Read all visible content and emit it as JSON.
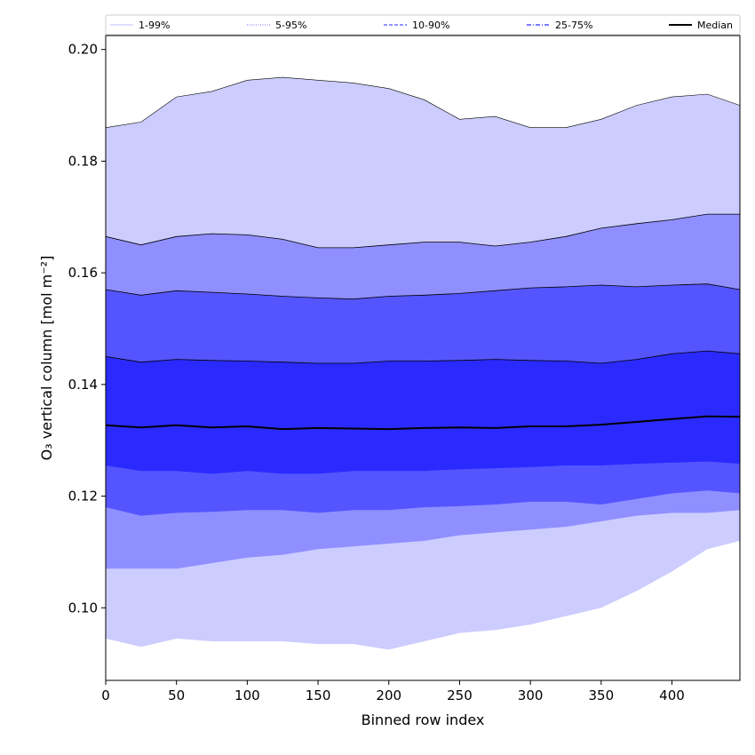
{
  "chart_data": {
    "type": "area",
    "xlabel": "Binned row index",
    "ylabel": "O₃ vertical column [mol m⁻²]",
    "xlim": [
      0,
      448
    ],
    "ylim": [
      0.087,
      0.2025
    ],
    "xticks": [
      0,
      50,
      100,
      150,
      200,
      250,
      300,
      350,
      400
    ],
    "yticks": [
      0.1,
      0.12,
      0.14,
      0.16,
      0.18,
      0.2
    ],
    "ytick_labels": [
      "0.10",
      "0.12",
      "0.14",
      "0.16",
      "0.18",
      "0.20"
    ],
    "grid": false,
    "legend_position": "top",
    "legend": [
      {
        "label": "1-99%",
        "color": "#ccccff",
        "style": "solid"
      },
      {
        "label": "5-95%",
        "color": "#8f8fff",
        "style": "dotted"
      },
      {
        "label": "10-90%",
        "color": "#5555ff",
        "style": "dashed"
      },
      {
        "label": "25-75%",
        "color": "#2a2aff",
        "style": "dashdot"
      },
      {
        "label": "Median",
        "color": "#000000",
        "style": "solid"
      }
    ],
    "x": [
      0,
      25,
      50,
      75,
      100,
      125,
      150,
      175,
      200,
      225,
      250,
      275,
      300,
      325,
      350,
      375,
      400,
      425,
      448
    ],
    "series": [
      {
        "name": "1-99%",
        "color": "#ccccff",
        "lower": [
          0.0945,
          0.093,
          0.0945,
          0.094,
          0.094,
          0.094,
          0.0935,
          0.0935,
          0.0925,
          0.094,
          0.0955,
          0.096,
          0.097,
          0.0985,
          0.1,
          0.103,
          0.1065,
          0.1105,
          0.112
        ],
        "upper": [
          0.186,
          0.187,
          0.1915,
          0.1925,
          0.1945,
          0.195,
          0.1945,
          0.194,
          0.193,
          0.191,
          0.1875,
          0.188,
          0.186,
          0.186,
          0.1875,
          0.19,
          0.1915,
          0.192,
          0.19
        ]
      },
      {
        "name": "5-95%",
        "color": "#8f8fff",
        "lower": [
          0.107,
          0.107,
          0.107,
          0.108,
          0.109,
          0.1095,
          0.1105,
          0.111,
          0.1115,
          0.112,
          0.113,
          0.1135,
          0.114,
          0.1145,
          0.1155,
          0.1165,
          0.117,
          0.117,
          0.1175
        ],
        "upper": [
          0.1665,
          0.165,
          0.1665,
          0.167,
          0.1668,
          0.166,
          0.1645,
          0.1645,
          0.165,
          0.1655,
          0.1655,
          0.1648,
          0.1655,
          0.1665,
          0.168,
          0.1688,
          0.1695,
          0.1705,
          0.1705
        ]
      },
      {
        "name": "10-90%",
        "color": "#5555ff",
        "lower": [
          0.118,
          0.1165,
          0.117,
          0.1172,
          0.1175,
          0.1175,
          0.117,
          0.1175,
          0.1175,
          0.118,
          0.1182,
          0.1185,
          0.119,
          0.119,
          0.1185,
          0.1195,
          0.1205,
          0.121,
          0.1205
        ],
        "upper": [
          0.157,
          0.156,
          0.1568,
          0.1565,
          0.1562,
          0.1558,
          0.1555,
          0.1553,
          0.1558,
          0.156,
          0.1563,
          0.1568,
          0.1573,
          0.1575,
          0.1578,
          0.1575,
          0.1578,
          0.158,
          0.157
        ]
      },
      {
        "name": "25-75%",
        "color": "#2a2aff",
        "lower": [
          0.1255,
          0.1245,
          0.1245,
          0.124,
          0.1245,
          0.124,
          0.124,
          0.1245,
          0.1245,
          0.1245,
          0.1248,
          0.125,
          0.1252,
          0.1255,
          0.1255,
          0.1258,
          0.126,
          0.1262,
          0.1258
        ],
        "upper": [
          0.145,
          0.144,
          0.1445,
          0.1443,
          0.1442,
          0.144,
          0.1438,
          0.1438,
          0.1442,
          0.1442,
          0.1443,
          0.1445,
          0.1443,
          0.1442,
          0.1438,
          0.1445,
          0.1455,
          0.146,
          0.1455
        ]
      },
      {
        "name": "Median",
        "color": "#000000",
        "values": [
          0.1327,
          0.1323,
          0.1327,
          0.1323,
          0.1325,
          0.132,
          0.1322,
          0.1321,
          0.132,
          0.1322,
          0.1323,
          0.1322,
          0.1325,
          0.1325,
          0.1328,
          0.1333,
          0.1338,
          0.1343,
          0.1342
        ]
      }
    ]
  }
}
